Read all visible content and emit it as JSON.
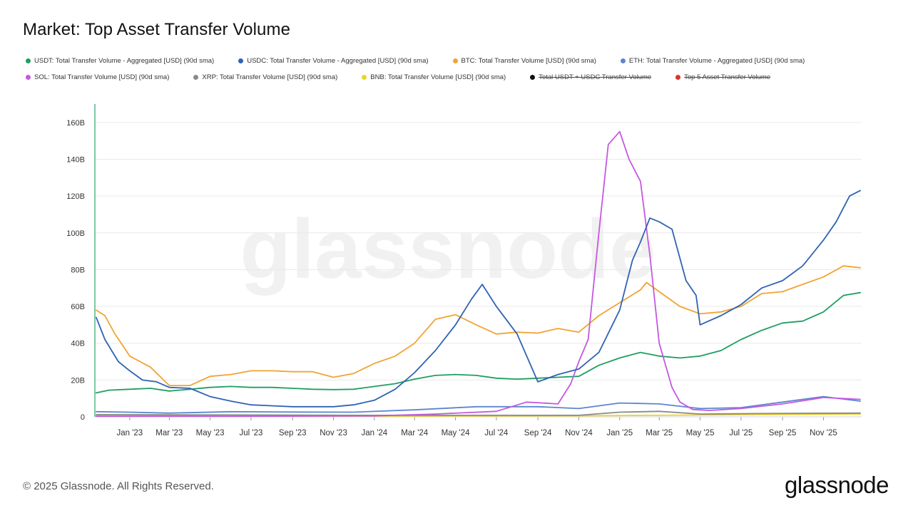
{
  "header": {
    "title": "Market: Top Asset Transfer Volume"
  },
  "footer": {
    "copyright": "© 2025 Glassnode. All Rights Reserved.",
    "brand": "glassnode"
  },
  "watermark": "glassnode",
  "legend": [
    {
      "label": "USDT: Total Transfer Volume - Aggregated [USD] (90d sma)",
      "color": "#1f9e62",
      "hidden": false
    },
    {
      "label": "USDC: Total Transfer Volume - Aggregated [USD] (90d sma)",
      "color": "#2f63b3",
      "hidden": false
    },
    {
      "label": "BTC: Total Transfer Volume [USD] (90d sma)",
      "color": "#f2a332",
      "hidden": false
    },
    {
      "label": "ETH: Total Transfer Volume - Aggregated [USD] (90d sma)",
      "color": "#5b86cf",
      "hidden": false
    },
    {
      "label": "SOL: Total Transfer Volume [USD] (90d sma)",
      "color": "#c458e0",
      "hidden": false
    },
    {
      "label": "XRP: Total Transfer Volume [USD] (90d sma)",
      "color": "#8a8a8a",
      "hidden": false
    },
    {
      "label": "BNB: Total Transfer Volume [USD] (90d sma)",
      "color": "#eed22a",
      "hidden": false
    },
    {
      "label": "Total USDT + USDC Transfer Volume",
      "color": "#111111",
      "hidden": true
    },
    {
      "label": "Top 5 Asset Transfer Volume",
      "color": "#d9342b",
      "hidden": true
    }
  ],
  "chart_data": {
    "type": "line",
    "title": "Market: Top Asset Transfer Volume",
    "xlabel": "",
    "ylabel": "",
    "ylim": [
      0,
      170
    ],
    "y_unit": "B",
    "y_ticks": [
      "0",
      "20B",
      "40B",
      "60B",
      "80B",
      "100B",
      "120B",
      "140B",
      "160B"
    ],
    "y_tick_values": [
      0,
      20,
      40,
      60,
      80,
      100,
      120,
      140,
      160
    ],
    "x_domain": [
      "2022-11-10",
      "2025-12-28"
    ],
    "x_ticks": [
      "Jan '23",
      "Mar '23",
      "May '23",
      "Jul '23",
      "Sep '23",
      "Nov '23",
      "Jan '24",
      "Mar '24",
      "May '24",
      "Jul '24",
      "Sep '24",
      "Nov '24",
      "Jan '25",
      "Mar '25",
      "May '25",
      "Jul '25",
      "Sep '25",
      "Nov '25"
    ],
    "x_tick_dates": [
      "2023-01-01",
      "2023-03-01",
      "2023-05-01",
      "2023-07-01",
      "2023-09-01",
      "2023-11-01",
      "2024-01-01",
      "2024-03-01",
      "2024-05-01",
      "2024-07-01",
      "2024-09-01",
      "2024-11-01",
      "2025-01-01",
      "2025-03-01",
      "2025-05-01",
      "2025-07-01",
      "2025-09-01",
      "2025-11-01"
    ],
    "grid": true,
    "legend_position": "top",
    "series": [
      {
        "name": "USDT: Total Transfer Volume - Aggregated [USD] (90d sma)",
        "color": "#1f9e62",
        "x": [
          "2022-11-12",
          "2022-12-01",
          "2023-01-01",
          "2023-02-01",
          "2023-03-01",
          "2023-04-01",
          "2023-05-01",
          "2023-06-01",
          "2023-07-01",
          "2023-08-01",
          "2023-09-01",
          "2023-10-01",
          "2023-11-01",
          "2023-12-01",
          "2024-01-01",
          "2024-02-01",
          "2024-03-01",
          "2024-04-01",
          "2024-05-01",
          "2024-06-01",
          "2024-07-01",
          "2024-08-01",
          "2024-09-01",
          "2024-10-01",
          "2024-11-01",
          "2024-12-01",
          "2025-01-01",
          "2025-02-01",
          "2025-03-01",
          "2025-04-01",
          "2025-05-01",
          "2025-06-01",
          "2025-07-01",
          "2025-08-01",
          "2025-09-01",
          "2025-10-01",
          "2025-11-01",
          "2025-12-01",
          "2025-12-26"
        ],
        "y": [
          13,
          14.5,
          15,
          15.5,
          14,
          15,
          16,
          16.5,
          16,
          16,
          15.5,
          15,
          14.8,
          15,
          16.5,
          18,
          20.5,
          22.5,
          23,
          22.5,
          21,
          20.5,
          21,
          21.5,
          22,
          28,
          32,
          35,
          33,
          32,
          33,
          36,
          42,
          47,
          51,
          52,
          57,
          66,
          67.5
        ]
      },
      {
        "name": "USDC: Total Transfer Volume - Aggregated [USD] (90d sma)",
        "color": "#2f63b3",
        "x": [
          "2022-11-12",
          "2022-11-25",
          "2022-12-15",
          "2023-01-01",
          "2023-01-20",
          "2023-02-10",
          "2023-03-01",
          "2023-04-01",
          "2023-05-01",
          "2023-06-01",
          "2023-07-01",
          "2023-08-01",
          "2023-09-01",
          "2023-10-01",
          "2023-11-01",
          "2023-12-01",
          "2024-01-01",
          "2024-02-01",
          "2024-03-01",
          "2024-04-01",
          "2024-05-01",
          "2024-05-25",
          "2024-06-10",
          "2024-07-01",
          "2024-08-01",
          "2024-09-01",
          "2024-10-01",
          "2024-11-01",
          "2024-12-01",
          "2025-01-01",
          "2025-01-20",
          "2025-02-01",
          "2025-02-15",
          "2025-03-01",
          "2025-03-20",
          "2025-04-10",
          "2025-04-25",
          "2025-05-01",
          "2025-06-01",
          "2025-07-01",
          "2025-08-01",
          "2025-09-01",
          "2025-10-01",
          "2025-11-01",
          "2025-11-20",
          "2025-12-10",
          "2025-12-26"
        ],
        "y": [
          54,
          42,
          30,
          25,
          20,
          19,
          16,
          15.5,
          11,
          8.5,
          6.5,
          6,
          5.5,
          5.5,
          5.5,
          6.5,
          9,
          15,
          24,
          36,
          50,
          64,
          72,
          60,
          45,
          19,
          23,
          26,
          35,
          58,
          85,
          95,
          108,
          106,
          102,
          74,
          66,
          50,
          55,
          61,
          70,
          74,
          82,
          96,
          106,
          120,
          123
        ]
      },
      {
        "name": "BTC: Total Transfer Volume [USD] (90d sma)",
        "color": "#f2a332",
        "x": [
          "2022-11-12",
          "2022-11-25",
          "2022-12-10",
          "2023-01-01",
          "2023-02-01",
          "2023-03-01",
          "2023-04-01",
          "2023-05-01",
          "2023-06-01",
          "2023-07-01",
          "2023-08-01",
          "2023-09-01",
          "2023-10-01",
          "2023-11-01",
          "2023-12-01",
          "2024-01-01",
          "2024-02-01",
          "2024-03-01",
          "2024-04-01",
          "2024-05-01",
          "2024-06-01",
          "2024-07-01",
          "2024-08-01",
          "2024-09-01",
          "2024-10-01",
          "2024-11-01",
          "2024-12-01",
          "2025-01-01",
          "2025-02-01",
          "2025-02-10",
          "2025-03-01",
          "2025-04-01",
          "2025-05-01",
          "2025-06-01",
          "2025-07-01",
          "2025-08-01",
          "2025-09-01",
          "2025-10-01",
          "2025-11-01",
          "2025-12-01",
          "2025-12-26"
        ],
        "y": [
          58,
          55,
          45,
          33,
          27,
          17,
          17,
          22,
          23,
          25,
          25,
          24.5,
          24.5,
          21.5,
          23.5,
          29,
          33,
          40,
          53,
          55.5,
          50,
          45,
          46,
          45.5,
          48,
          46,
          55,
          62,
          69,
          73,
          68,
          60,
          56,
          57,
          60,
          67,
          68,
          72,
          76,
          82,
          81
        ]
      },
      {
        "name": "ETH: Total Transfer Volume - Aggregated [USD] (90d sma)",
        "color": "#5b86cf",
        "x": [
          "2022-11-12",
          "2023-01-01",
          "2023-03-01",
          "2023-06-01",
          "2023-09-01",
          "2023-12-01",
          "2024-03-01",
          "2024-06-01",
          "2024-09-01",
          "2024-11-01",
          "2025-01-01",
          "2025-03-01",
          "2025-05-01",
          "2025-07-01",
          "2025-09-01",
          "2025-11-01",
          "2025-12-26"
        ],
        "y": [
          2.8,
          2.5,
          2,
          2.8,
          2.6,
          2.5,
          3.8,
          5.5,
          5.5,
          4.5,
          7.5,
          7,
          4.5,
          5,
          8,
          11,
          8.5
        ]
      },
      {
        "name": "SOL: Total Transfer Volume [USD] (90d sma)",
        "color": "#c458e0",
        "x": [
          "2022-11-12",
          "2023-06-01",
          "2024-01-01",
          "2024-04-01",
          "2024-07-01",
          "2024-08-15",
          "2024-10-01",
          "2024-10-20",
          "2024-11-01",
          "2024-11-15",
          "2024-12-01",
          "2024-12-15",
          "2025-01-01",
          "2025-01-15",
          "2025-02-01",
          "2025-02-15",
          "2025-03-01",
          "2025-03-20",
          "2025-04-01",
          "2025-04-20",
          "2025-05-15",
          "2025-07-01",
          "2025-09-01",
          "2025-11-01",
          "2025-12-26"
        ],
        "y": [
          0.3,
          0.3,
          0.5,
          1.5,
          3,
          8,
          7,
          18,
          30,
          42,
          100,
          148,
          155,
          140,
          128,
          88,
          40,
          16,
          8,
          4,
          3.5,
          4.5,
          7,
          10.5,
          9.5
        ]
      },
      {
        "name": "XRP: Total Transfer Volume [USD] (90d sma)",
        "color": "#8a8a8a",
        "x": [
          "2022-11-12",
          "2023-06-01",
          "2024-01-01",
          "2024-06-01",
          "2024-11-01",
          "2025-01-01",
          "2025-03-01",
          "2025-05-01",
          "2025-08-01",
          "2025-12-26"
        ],
        "y": [
          1.2,
          1,
          0.8,
          0.8,
          0.8,
          2.5,
          3,
          1.5,
          1.8,
          2
        ]
      },
      {
        "name": "BNB: Total Transfer Volume [USD] (90d sma)",
        "color": "#eed22a",
        "x": [
          "2022-11-12",
          "2023-06-01",
          "2024-01-01",
          "2024-06-01",
          "2024-11-01",
          "2025-03-01",
          "2025-08-01",
          "2025-12-26"
        ],
        "y": [
          0.6,
          0.4,
          0.4,
          0.5,
          0.6,
          0.8,
          1.2,
          1.5
        ]
      }
    ]
  }
}
